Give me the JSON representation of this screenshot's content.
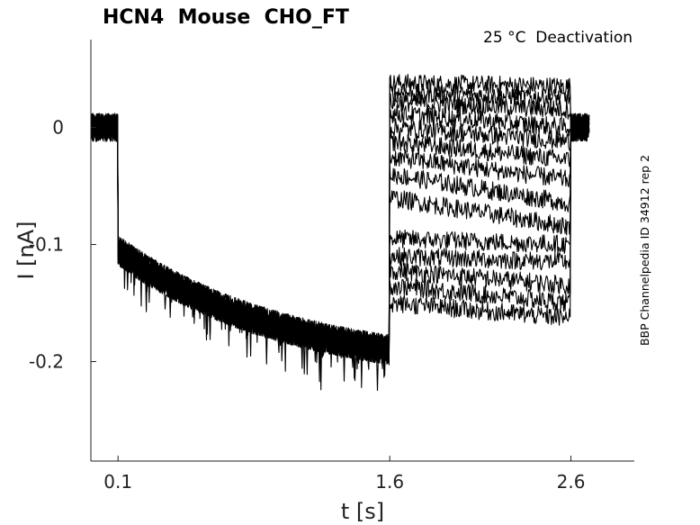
{
  "chart_data": {
    "type": "line",
    "title": "HCN4  Mouse  CHO_FT",
    "condition": "25 °C  Deactivation",
    "side_label": "BBP Channelpedia ID 34912 rep 2",
    "xlabel": "t [s]",
    "ylabel": "I [nA]",
    "xlim": [
      -0.05,
      2.95
    ],
    "ylim": [
      -0.285,
      0.075
    ],
    "xticks": [
      {
        "value": 0.1,
        "label": "0.1"
      },
      {
        "value": 1.6,
        "label": "1.6"
      },
      {
        "value": 2.6,
        "label": "2.6"
      }
    ],
    "yticks": [
      {
        "value": 0.0,
        "label": "0"
      },
      {
        "value": -0.1,
        "label": "-0.1"
      },
      {
        "value": -0.2,
        "label": "-0.2"
      }
    ],
    "grid": false,
    "series": [
      {
        "values": {
          "baseline": 0.0,
          "step_start": -0.105,
          "step_end": -0.19,
          "tail_start": 0.038,
          "tail_end": 0.035
        }
      },
      {
        "values": {
          "baseline": 0.0,
          "step_start": -0.105,
          "step_end": -0.19,
          "tail_start": 0.03,
          "tail_end": 0.025
        }
      },
      {
        "values": {
          "baseline": 0.0,
          "step_start": -0.105,
          "step_end": -0.19,
          "tail_start": 0.022,
          "tail_end": 0.015
        }
      },
      {
        "values": {
          "baseline": 0.0,
          "step_start": -0.105,
          "step_end": -0.19,
          "tail_start": 0.012,
          "tail_end": 0.0
        }
      },
      {
        "values": {
          "baseline": 0.0,
          "step_start": -0.105,
          "step_end": -0.19,
          "tail_start": 0.0,
          "tail_end": -0.012
        }
      },
      {
        "values": {
          "baseline": 0.0,
          "step_start": -0.105,
          "step_end": -0.19,
          "tail_start": -0.012,
          "tail_end": -0.028
        }
      },
      {
        "values": {
          "baseline": 0.0,
          "step_start": -0.105,
          "step_end": -0.19,
          "tail_start": -0.025,
          "tail_end": -0.045
        }
      },
      {
        "values": {
          "baseline": 0.0,
          "step_start": -0.105,
          "step_end": -0.19,
          "tail_start": -0.04,
          "tail_end": -0.065
        }
      },
      {
        "values": {
          "baseline": 0.0,
          "step_start": -0.105,
          "step_end": -0.19,
          "tail_start": -0.06,
          "tail_end": -0.085
        }
      },
      {
        "values": {
          "baseline": 0.0,
          "step_start": -0.105,
          "step_end": -0.19,
          "tail_start": -0.095,
          "tail_end": -0.1
        }
      },
      {
        "values": {
          "baseline": 0.0,
          "step_start": -0.105,
          "step_end": -0.19,
          "tail_start": -0.11,
          "tail_end": -0.115
        }
      },
      {
        "values": {
          "baseline": 0.0,
          "step_start": -0.105,
          "step_end": -0.19,
          "tail_start": -0.122,
          "tail_end": -0.135
        }
      },
      {
        "values": {
          "baseline": 0.0,
          "step_start": -0.105,
          "step_end": -0.19,
          "tail_start": -0.135,
          "tail_end": -0.15
        }
      },
      {
        "values": {
          "baseline": 0.0,
          "step_start": -0.105,
          "step_end": -0.19,
          "tail_start": -0.15,
          "tail_end": -0.163
        }
      }
    ],
    "protocol_times": {
      "step_on": 0.1,
      "step_off": 1.6,
      "tail_off": 2.6,
      "end": 2.7
    }
  }
}
